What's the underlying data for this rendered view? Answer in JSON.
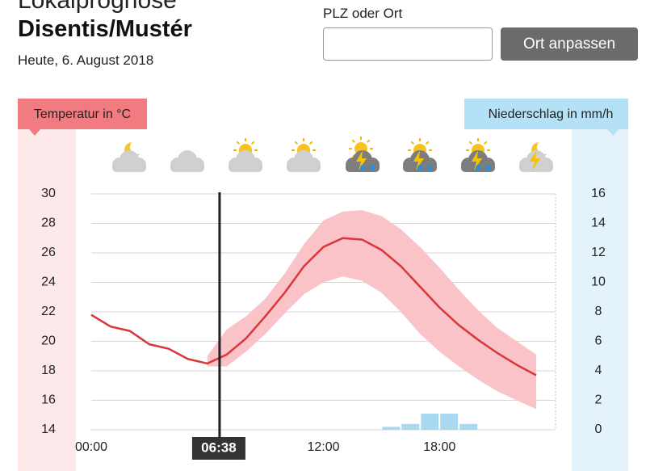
{
  "header": {
    "overline": "Lokalprognose",
    "title": "Disentis/Mustér",
    "date": "Heute, 6. August 2018"
  },
  "search": {
    "label": "PLZ oder Ort",
    "button": "Ort anpassen"
  },
  "chart_data": {
    "type": "line",
    "ylabel": "Temperatur in °C",
    "y2label": "Niederschlag in mm/h",
    "xlim": [
      0,
      24
    ],
    "xticks": [
      {
        "value": 0,
        "label": "00:00"
      },
      {
        "value": 12,
        "label": "12:00"
      },
      {
        "value": 18,
        "label": "18:00"
      }
    ],
    "ylim": [
      14,
      30
    ],
    "yticks": [
      14,
      16,
      18,
      20,
      22,
      24,
      26,
      28,
      30
    ],
    "y2lim": [
      0,
      16
    ],
    "y2ticks": [
      0,
      2,
      4,
      6,
      8,
      10,
      12,
      14,
      16
    ],
    "grid": true,
    "now": {
      "x": 6.6333,
      "label": "06:38"
    },
    "temperature": {
      "color": "#d9363e",
      "x": [
        0,
        1,
        2,
        3,
        4,
        5,
        6,
        7,
        8,
        9,
        10,
        11,
        12,
        13,
        14,
        15,
        16,
        17,
        18,
        19,
        20,
        21,
        22,
        23
      ],
      "values": [
        21.8,
        21.0,
        20.7,
        19.8,
        19.5,
        18.8,
        18.5,
        19.1,
        20.2,
        21.7,
        23.3,
        25.1,
        26.4,
        27.0,
        26.9,
        26.2,
        25.1,
        23.7,
        22.3,
        21.1,
        20.1,
        19.2,
        18.4,
        17.7
      ]
    },
    "temperature_range": {
      "color": "#f9c3c8",
      "x": [
        6,
        7,
        8,
        9,
        10,
        11,
        12,
        13,
        14,
        15,
        16,
        17,
        18,
        19,
        20,
        21,
        22,
        23
      ],
      "lower": [
        18.3,
        18.3,
        19.3,
        20.5,
        21.9,
        23.2,
        24.0,
        24.4,
        24.1,
        23.3,
        22.0,
        20.5,
        19.3,
        18.3,
        17.4,
        16.6,
        16.0,
        15.4
      ],
      "upper": [
        19.0,
        20.8,
        21.7,
        22.9,
        24.6,
        26.6,
        28.2,
        28.8,
        28.9,
        28.5,
        27.6,
        26.4,
        25.0,
        23.5,
        22.1,
        20.9,
        20.0,
        19.1
      ]
    },
    "precipitation": {
      "axis": "y2",
      "color": "#a9d9f2",
      "x": [
        15,
        16,
        17,
        18,
        19
      ],
      "values": [
        0.2,
        0.4,
        1.1,
        1.1,
        0.4
      ]
    }
  }
}
